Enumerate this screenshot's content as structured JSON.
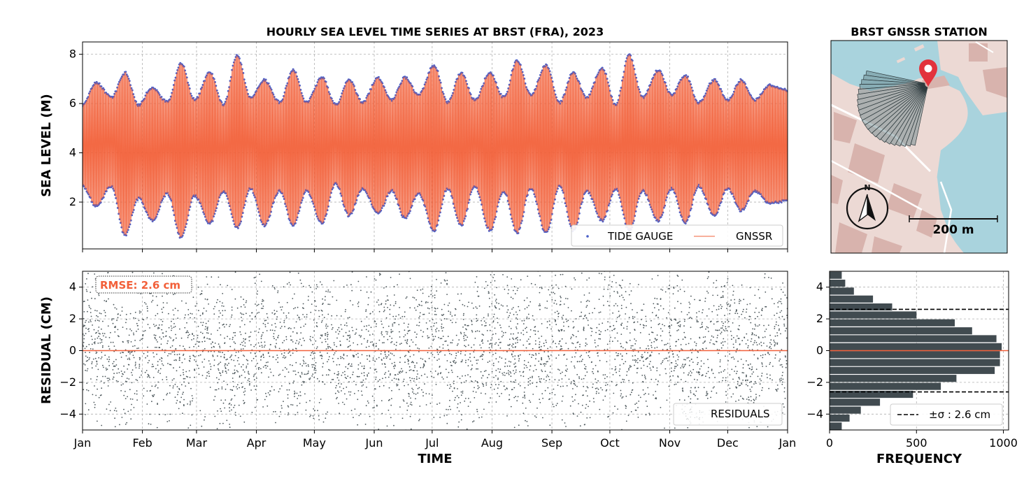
{
  "colors": {
    "tide_gauge": "#4a5fc8",
    "gnssr": "#f2603a",
    "residual_points": "#4b565a",
    "histogram_bars": "#414b50",
    "zero_line": "#f2603a",
    "sigma_line": "#000000",
    "map_water": "#a9d3dd",
    "map_land": "#ecd9d4",
    "map_buildings": "#d8b3ad",
    "marker": "#e2333c"
  },
  "chart_data": [
    {
      "type": "line",
      "title": "HOURLY SEA LEVEL TIME SERIES AT BRST (FRA), 2023",
      "xlabel": "",
      "ylabel": "SEA LEVEL (M)",
      "xlim": [
        "2023-01-01",
        "2024-01-01"
      ],
      "ylim": [
        0.1,
        8.5
      ],
      "yticks": [
        2,
        4,
        6,
        8
      ],
      "grid": true,
      "legend_position": "lower-right",
      "mean_level": 4.4,
      "envelope": {
        "x": [
          "2023-01-01",
          "2023-01-08",
          "2023-01-16",
          "2023-01-23",
          "2023-01-30",
          "2023-02-06",
          "2023-02-14",
          "2023-02-21",
          "2023-02-28",
          "2023-03-08",
          "2023-03-15",
          "2023-03-22",
          "2023-03-29",
          "2023-04-05",
          "2023-04-13",
          "2023-04-20",
          "2023-04-27",
          "2023-05-05",
          "2023-05-12",
          "2023-05-19",
          "2023-05-26",
          "2023-06-03",
          "2023-06-10",
          "2023-06-17",
          "2023-06-24",
          "2023-07-02",
          "2023-07-09",
          "2023-07-16",
          "2023-07-23",
          "2023-07-31",
          "2023-08-07",
          "2023-08-14",
          "2023-08-21",
          "2023-08-29",
          "2023-09-05",
          "2023-09-12",
          "2023-09-19",
          "2023-09-27",
          "2023-10-04",
          "2023-10-11",
          "2023-10-18",
          "2023-10-26",
          "2023-11-02",
          "2023-11-09",
          "2023-11-16",
          "2023-11-24",
          "2023-12-01",
          "2023-12-08",
          "2023-12-15",
          "2023-12-23",
          "2023-12-31"
        ],
        "high": [
          6.0,
          6.9,
          6.3,
          7.3,
          6.0,
          6.7,
          6.1,
          7.7,
          6.2,
          7.3,
          6.0,
          8.0,
          6.3,
          7.0,
          6.1,
          7.4,
          6.1,
          7.1,
          6.0,
          7.0,
          6.1,
          7.1,
          6.2,
          7.1,
          6.4,
          7.6,
          6.1,
          7.3,
          6.2,
          7.3,
          6.3,
          7.8,
          6.4,
          7.6,
          6.1,
          7.3,
          6.3,
          7.5,
          6.0,
          8.0,
          6.3,
          7.4,
          6.4,
          7.2,
          6.1,
          7.0,
          6.2,
          7.0,
          6.2,
          6.8,
          6.6
        ],
        "low": [
          2.6,
          1.8,
          2.6,
          0.6,
          2.1,
          1.2,
          2.3,
          0.5,
          2.2,
          1.1,
          2.4,
          0.9,
          2.5,
          1.0,
          2.4,
          1.0,
          2.4,
          1.1,
          2.7,
          1.4,
          2.5,
          1.5,
          2.4,
          1.3,
          2.3,
          0.8,
          2.5,
          1.0,
          2.6,
          0.8,
          2.4,
          0.7,
          2.5,
          0.7,
          2.6,
          0.8,
          2.4,
          1.2,
          2.5,
          0.8,
          2.4,
          1.2,
          2.5,
          1.1,
          2.6,
          1.4,
          2.5,
          1.6,
          2.4,
          1.9,
          2.0
        ]
      },
      "series": [
        {
          "name": "TIDE GAUGE",
          "style": "points"
        },
        {
          "name": "GNSSR",
          "style": "line"
        }
      ]
    },
    {
      "type": "scatter",
      "xlabel": "TIME",
      "ylabel": "RESIDUAL (CM)",
      "xlim": [
        "2023-01-01",
        "2024-01-01"
      ],
      "xticks": [
        "Jan",
        "Feb",
        "Mar",
        "Apr",
        "May",
        "Jun",
        "Jul",
        "Aug",
        "Sep",
        "Oct",
        "Nov",
        "Dec",
        "Jan"
      ],
      "ylim": [
        -5,
        5
      ],
      "yticks": [
        -4,
        -2,
        0,
        2,
        4
      ],
      "grid": true,
      "zero_line": 0,
      "annotation": "RMSE: 2.6 cm",
      "legend_position": "lower-right",
      "series": [
        {
          "name": "RESIDUALS",
          "std": 2.6
        }
      ]
    },
    {
      "type": "bar",
      "orientation": "horizontal",
      "xlabel": "FREQUENCY",
      "ylabel": "",
      "xlim": [
        0,
        1030
      ],
      "xticks": [
        0,
        500,
        1000
      ],
      "ylim": [
        -5,
        5
      ],
      "yticks": [
        -4,
        -2,
        0,
        2,
        4
      ],
      "grid": true,
      "legend_position": "lower-right",
      "bin_edges": [
        -5,
        -4.5,
        -4,
        -3.5,
        -3,
        -2.5,
        -2,
        -1.5,
        -1,
        -0.5,
        0,
        0.5,
        1,
        1.5,
        2,
        2.5,
        3,
        3.5,
        4,
        4.5,
        5
      ],
      "counts": [
        70,
        115,
        180,
        290,
        480,
        640,
        730,
        950,
        980,
        980,
        990,
        960,
        820,
        720,
        500,
        360,
        250,
        140,
        90,
        70
      ],
      "sigma": 2.6,
      "series": [
        {
          "name": "±σ : 2.6 cm"
        }
      ]
    }
  ],
  "map": {
    "title": "BRST GNSSR STATION",
    "north_label": "N",
    "scale_label": "200 m"
  }
}
